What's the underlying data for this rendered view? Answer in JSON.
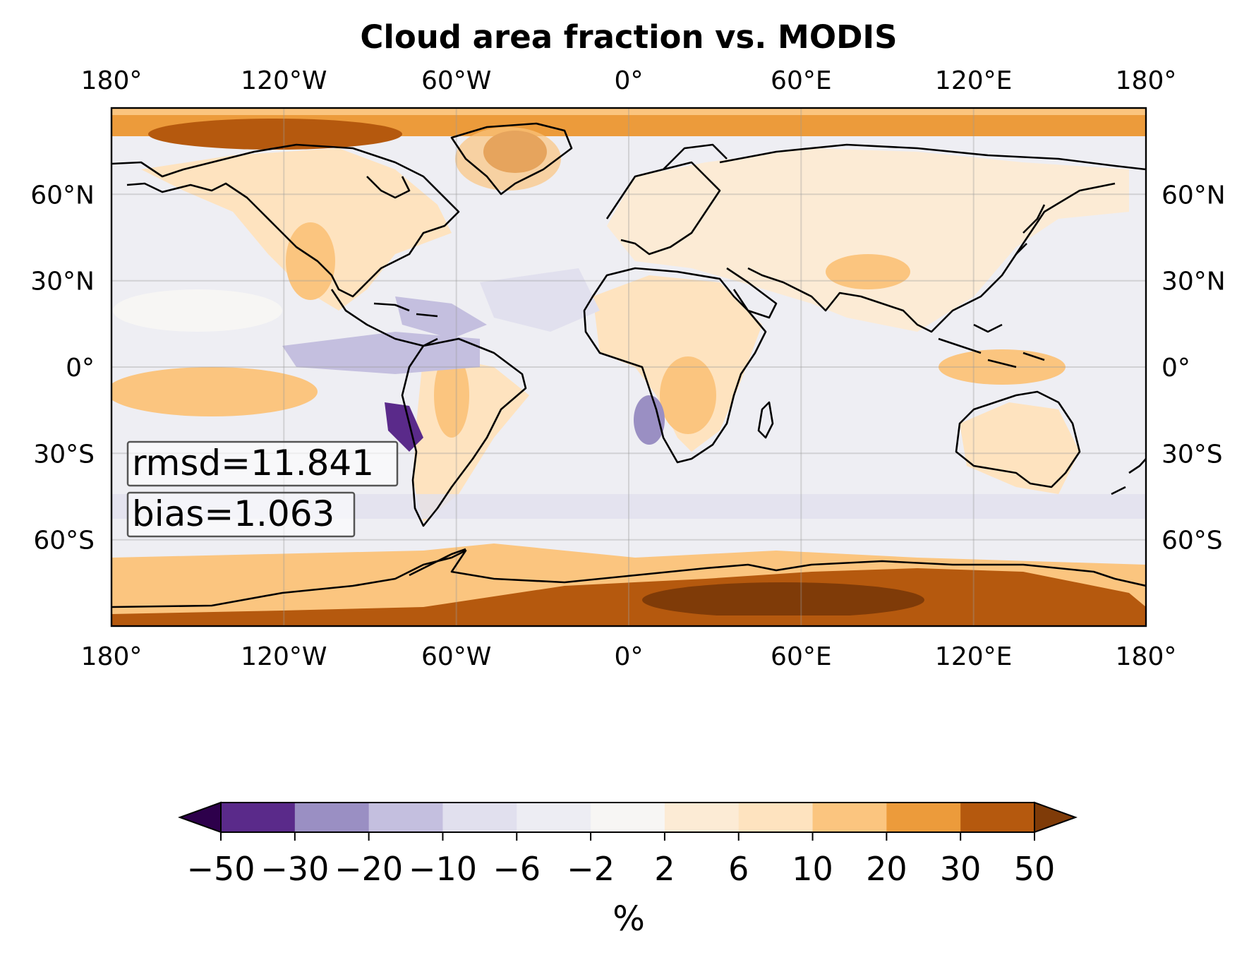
{
  "title": "Cloud area fraction vs. MODIS",
  "map": {
    "projection": "PlateCarree",
    "lon_range": [
      -180,
      180
    ],
    "lat_range": [
      -90,
      90
    ],
    "top_ticks": [
      "180°",
      "120°W",
      "60°W",
      "0°",
      "60°E",
      "120°E",
      "180°"
    ],
    "bottom_ticks": [
      "180°",
      "120°W",
      "60°W",
      "0°",
      "60°E",
      "120°E",
      "180°"
    ],
    "lat_ticks": [
      {
        "lat": 60,
        "label": "60°N"
      },
      {
        "lat": 30,
        "label": "30°N"
      },
      {
        "lat": 0,
        "label": "0°"
      },
      {
        "lat": -30,
        "label": "30°S"
      },
      {
        "lat": -60,
        "label": "60°S"
      }
    ],
    "gridlines": true,
    "coastlines": true
  },
  "stats": {
    "rmsd": "rmsd=11.841",
    "bias": "bias=1.063"
  },
  "colorbar": {
    "label": "%",
    "extend": "both",
    "levels": [
      -50,
      -30,
      -20,
      -10,
      -6,
      -2,
      2,
      6,
      10,
      20,
      30,
      50
    ],
    "tick_labels": [
      "−50",
      "−30",
      "−20",
      "−10",
      "−6",
      "−2",
      "2",
      "6",
      "10",
      "20",
      "30",
      "50"
    ],
    "colors": [
      "#5a2a8a",
      "#9a8fc3",
      "#c4bfdf",
      "#e1e0ee",
      "#ededf3",
      "#f7f6f4",
      "#fcebd5",
      "#fee3bf",
      "#fbc57f",
      "#ec9b3b",
      "#b5590e",
      "#7f3b08"
    ],
    "under_color": "#2d004b",
    "over_color": "#7f3b08"
  }
}
